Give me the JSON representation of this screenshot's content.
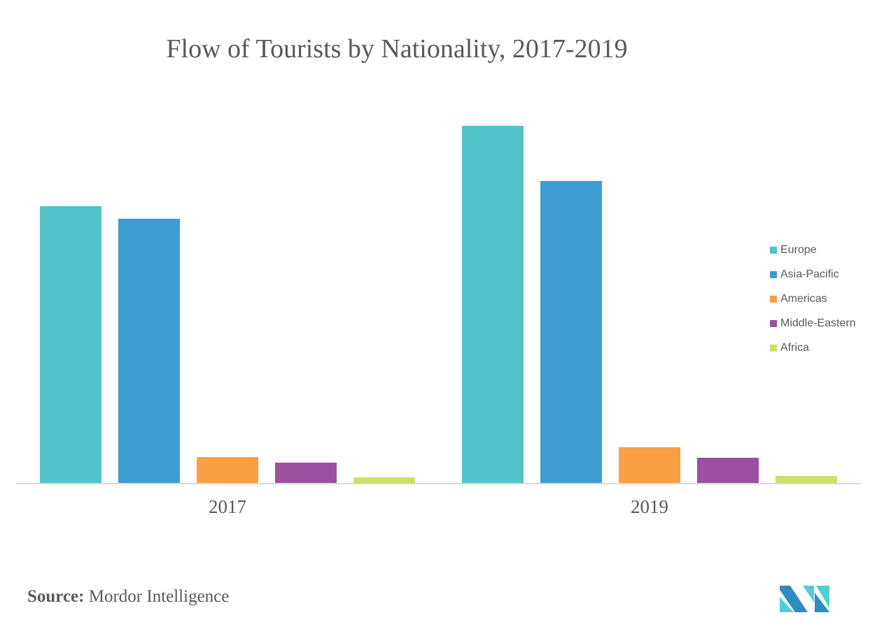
{
  "chart_data": {
    "type": "bar",
    "title": "Flow of Tourists by Nationality, 2017-2019",
    "xlabel": "",
    "ylabel": "",
    "y_axis_shown": false,
    "value_units": "relative index (no axis scale shown)",
    "ylim": [
      0,
      520
    ],
    "grid": false,
    "legend_position": "right",
    "categories": [
      "2017",
      "2019"
    ],
    "series": [
      {
        "name": "Europe",
        "color": "#52C4C9",
        "values": [
          396,
          511
        ]
      },
      {
        "name": "Asia-Pacific",
        "color": "#3D9DD0",
        "values": [
          378,
          432
        ]
      },
      {
        "name": "Americas",
        "color": "#FB9F45",
        "values": [
          37,
          51
        ]
      },
      {
        "name": "Middle-Eastern",
        "color": "#9B50A0",
        "values": [
          29,
          36
        ]
      },
      {
        "name": "Africa",
        "color": "#D0DF69",
        "values": [
          8,
          10
        ]
      }
    ]
  },
  "source": {
    "label": "Source:",
    "text": "Mordor Intelligence"
  },
  "logo": {
    "name": "mordor-intelligence-logo",
    "colors": [
      "#2E8CC0",
      "#4FCFD4"
    ]
  },
  "colors": {
    "text": "#595959",
    "axis": "#D9D9D9"
  }
}
